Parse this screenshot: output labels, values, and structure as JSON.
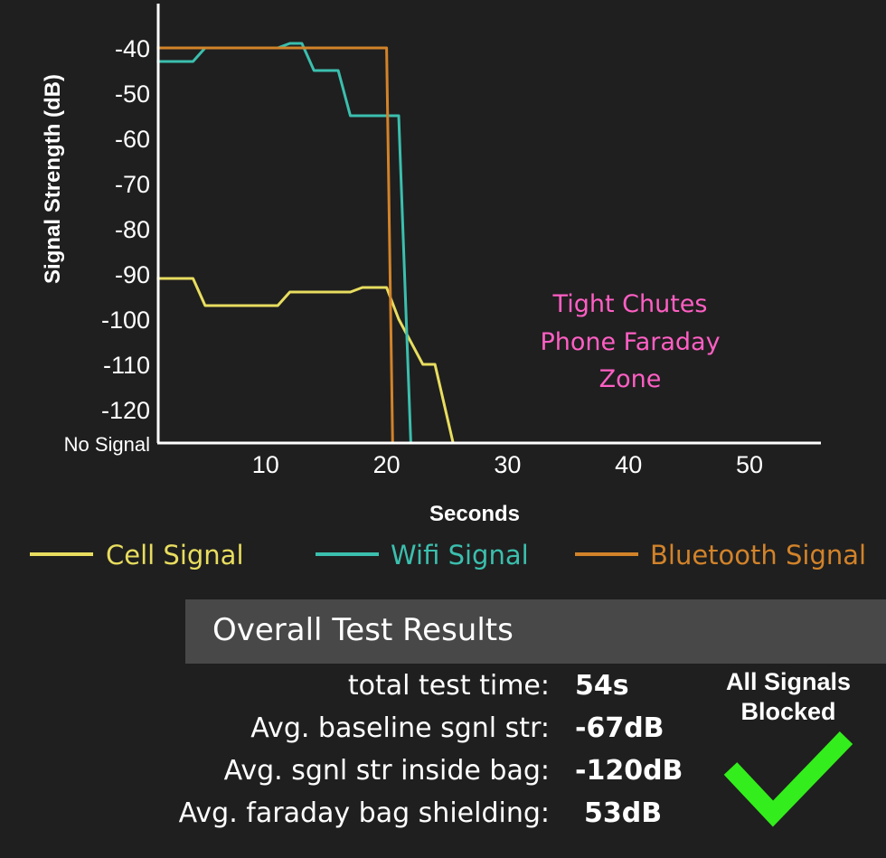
{
  "chart_data": {
    "type": "line",
    "xlabel": "Seconds",
    "ylabel": "Signal Strength (dB)",
    "xlim": [
      1,
      55
    ],
    "x_ticks": [
      10,
      20,
      30,
      40,
      50
    ],
    "y_ticks": [
      -40,
      -50,
      -60,
      -70,
      -80,
      -90,
      -100,
      -110,
      -120
    ],
    "y_bottom_label": "No Signal",
    "y_bottom_value": -127,
    "ylim": [
      -127,
      -31
    ],
    "grid": false,
    "annotation": [
      "Tight Chutes",
      "Phone Faraday",
      "Zone"
    ],
    "annotation_color": "#ff5fc4",
    "legend_position": "bottom",
    "series": [
      {
        "name": "Cell Signal",
        "color": "#e8dd5f",
        "points": [
          [
            1,
            -91
          ],
          [
            4,
            -91
          ],
          [
            5,
            -97
          ],
          [
            11,
            -97
          ],
          [
            12,
            -94
          ],
          [
            17,
            -94
          ],
          [
            18,
            -93
          ],
          [
            20,
            -93
          ],
          [
            21,
            -100
          ],
          [
            23,
            -110
          ],
          [
            24,
            -110
          ],
          [
            25.5,
            -127
          ],
          [
            45,
            -127
          ]
        ]
      },
      {
        "name": "Wifi Signal",
        "color": "#3bbfae",
        "points": [
          [
            1,
            -43
          ],
          [
            4,
            -43
          ],
          [
            5,
            -40
          ],
          [
            11,
            -40
          ],
          [
            12,
            -39
          ],
          [
            13,
            -39
          ],
          [
            14,
            -45
          ],
          [
            16,
            -45
          ],
          [
            17,
            -55
          ],
          [
            21,
            -55
          ],
          [
            22,
            -127
          ],
          [
            54,
            -127
          ]
        ]
      },
      {
        "name": "Bluetooth Signal",
        "color": "#d2832a",
        "points": [
          [
            1,
            -40
          ],
          [
            20,
            -40
          ],
          [
            20.5,
            -127
          ],
          [
            45,
            -127
          ]
        ]
      }
    ]
  },
  "results": {
    "title": "Overall Test Results",
    "rows": [
      {
        "label": "total test time:",
        "value": "54s"
      },
      {
        "label": "Avg. baseline sgnl str:",
        "value": "-67dB"
      },
      {
        "label": "Avg. sgnl str inside bag:",
        "value": "-120dB"
      },
      {
        "label": "Avg. faraday bag shielding:",
        "value": "53dB"
      }
    ],
    "status_line1": "All Signals",
    "status_line2": "Blocked",
    "status_icon": "checkmark-icon",
    "status_color": "#33ee1c"
  }
}
